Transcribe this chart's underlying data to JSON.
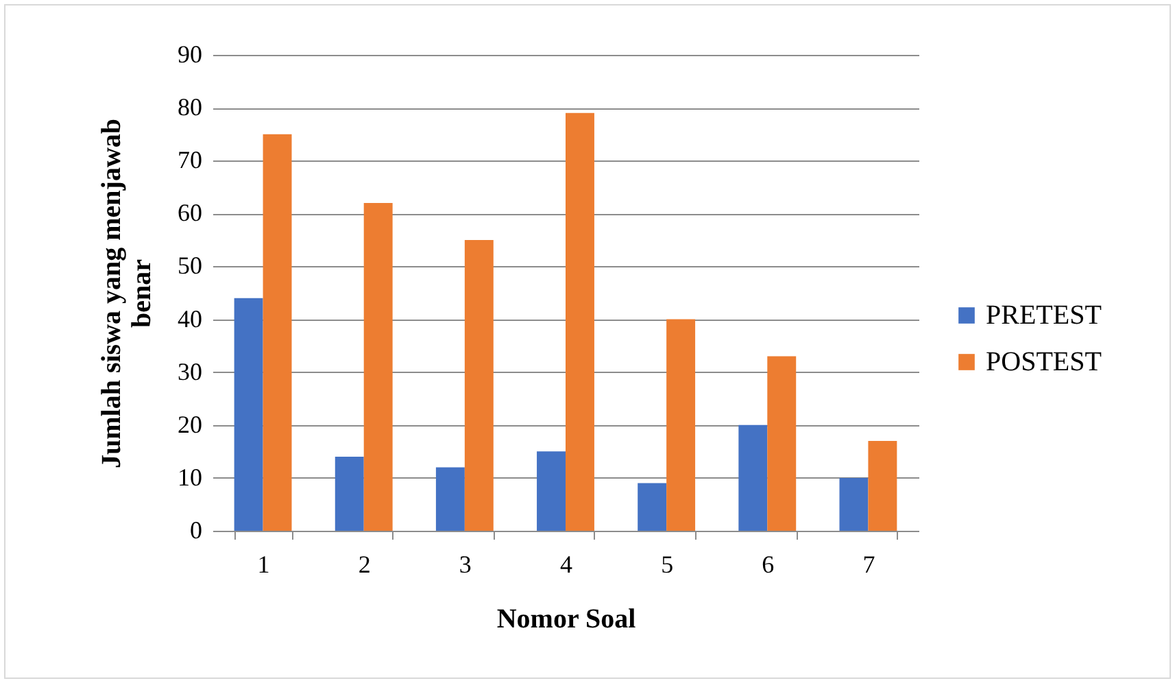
{
  "chart_data": {
    "type": "bar",
    "xlabel": "Nomor Soal",
    "ylabel": "Jumlah siswa yang menjawab benar",
    "categories": [
      "1",
      "2",
      "3",
      "4",
      "5",
      "6",
      "7"
    ],
    "series": [
      {
        "name": "PRETEST",
        "color": "#4472c4",
        "values": [
          44,
          14,
          12,
          15,
          9,
          20,
          10
        ]
      },
      {
        "name": "POSTEST",
        "color": "#ed7d31",
        "values": [
          75,
          62,
          55,
          79,
          40,
          33,
          17
        ]
      }
    ],
    "ylim": [
      0,
      90
    ],
    "yticks": [
      0,
      10,
      20,
      30,
      40,
      50,
      60,
      70,
      80,
      90
    ],
    "grid": "y",
    "legend": "right"
  }
}
